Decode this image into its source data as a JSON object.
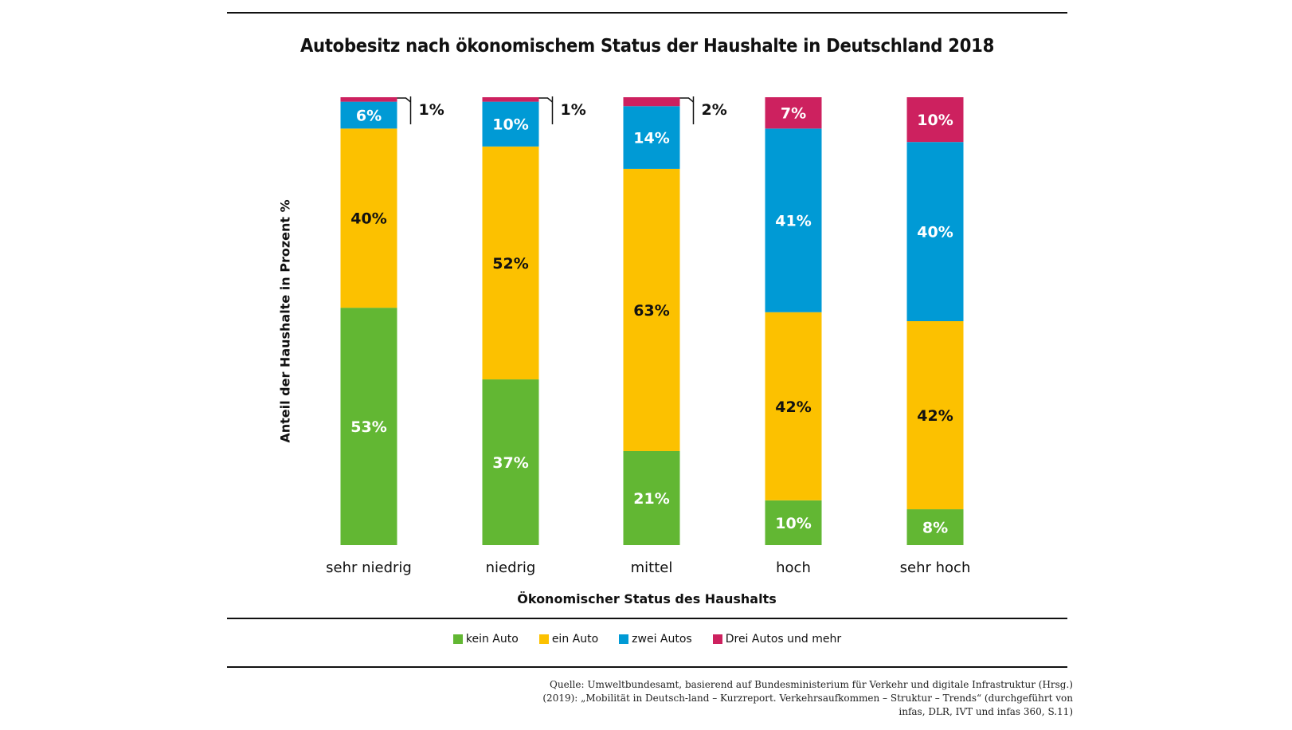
{
  "chart_data": {
    "type": "bar",
    "stacked": true,
    "orientation": "vertical",
    "title": "Autobesitz nach ökonomischem Status der Haushalte in Deutschland 2018",
    "xlabel": "Ökonomischer Status des Haushalts",
    "ylabel": "Anteil der Haushalte in Prozent %",
    "ylim": [
      0,
      100
    ],
    "grid": false,
    "legend_position": "bottom",
    "categories": [
      "sehr niedrig",
      "niedrig",
      "mittel",
      "hoch",
      "sehr hoch"
    ],
    "series": [
      {
        "name": "kein Auto",
        "color": "#62b733",
        "values": [
          53,
          37,
          21,
          10,
          8
        ],
        "label_color": "#ffffff"
      },
      {
        "name": "ein Auto",
        "color": "#fcc100",
        "values": [
          40,
          52,
          63,
          42,
          42
        ],
        "label_color": "#111111"
      },
      {
        "name": "zwei Autos",
        "color": "#009ad5",
        "values": [
          6,
          10,
          14,
          41,
          40
        ],
        "label_color": "#ffffff"
      },
      {
        "name": "Drei Autos und mehr",
        "color": "#cd215f",
        "values": [
          1,
          1,
          2,
          7,
          10
        ],
        "label_color": "#ffffff"
      }
    ],
    "data_labels": [
      [
        "53%",
        "37%",
        "21%",
        "10%",
        "8%"
      ],
      [
        "40%",
        "52%",
        "63%",
        "42%",
        "42%"
      ],
      [
        "6%",
        "10%",
        "14%",
        "41%",
        "40%"
      ],
      [
        "1%",
        "1%",
        "2%",
        "7%",
        "10%"
      ]
    ],
    "callout_labels_outside": [
      true,
      true,
      true,
      false,
      false
    ]
  },
  "source": {
    "lines": [
      "Quelle: Umweltbundesamt, basierend auf Bundesministerium für Verkehr und digitale Infrastruktur (Hrsg.)",
      "(2019): „Mobilität in Deutsch-land – Kurzreport. Verkehrsaufkommen – Struktur – Trends“ (durchgeführt von",
      "infas, DLR, IVT und infas 360, S.11)"
    ]
  }
}
